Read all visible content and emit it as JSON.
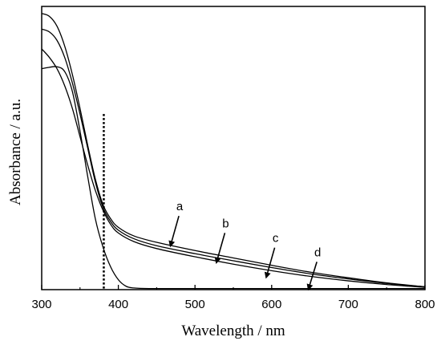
{
  "chart_data": {
    "type": "line",
    "xlabel": "Wavelength / nm",
    "ylabel": "Absorbance / a.u.",
    "xlim": [
      300,
      800
    ],
    "x_ticks": [
      300,
      400,
      500,
      600,
      700,
      800
    ],
    "y_tick_labels": false,
    "ylim": [
      0,
      1
    ],
    "grid": false,
    "series": [
      {
        "x": [
          300,
          310,
          320,
          330,
          340,
          350,
          360,
          370,
          380,
          390,
          400,
          420,
          450,
          500,
          550,
          600,
          650,
          700,
          750,
          800
        ],
        "y": [
          0.975,
          0.965,
          0.93,
          0.86,
          0.76,
          0.64,
          0.51,
          0.39,
          0.3,
          0.25,
          0.22,
          0.19,
          0.167,
          0.138,
          0.112,
          0.086,
          0.062,
          0.042,
          0.024,
          0.01
        ]
      },
      {
        "x": [
          300,
          310,
          320,
          330,
          340,
          350,
          360,
          370,
          380,
          390,
          400,
          420,
          450,
          500,
          550,
          600,
          650,
          700,
          750,
          800
        ],
        "y": [
          0.92,
          0.91,
          0.88,
          0.82,
          0.73,
          0.62,
          0.5,
          0.38,
          0.29,
          0.24,
          0.21,
          0.18,
          0.155,
          0.127,
          0.102,
          0.078,
          0.056,
          0.038,
          0.022,
          0.01
        ]
      },
      {
        "x": [
          300,
          310,
          320,
          330,
          340,
          350,
          360,
          370,
          380,
          390,
          400,
          420,
          450,
          500,
          550,
          600,
          650,
          700,
          750,
          800
        ],
        "y": [
          0.85,
          0.82,
          0.78,
          0.72,
          0.64,
          0.54,
          0.44,
          0.35,
          0.28,
          0.23,
          0.2,
          0.17,
          0.145,
          0.116,
          0.09,
          0.067,
          0.047,
          0.031,
          0.018,
          0.008
        ]
      },
      {
        "x": [
          300,
          310,
          320,
          330,
          340,
          350,
          360,
          370,
          380,
          390,
          400,
          410,
          420,
          440,
          500,
          600,
          700,
          800
        ],
        "y": [
          0.78,
          0.785,
          0.787,
          0.77,
          0.7,
          0.56,
          0.4,
          0.25,
          0.15,
          0.08,
          0.035,
          0.012,
          0.006,
          0.004,
          0.004,
          0.004,
          0.004,
          0.004
        ]
      }
    ],
    "annotations": [
      {
        "label": "a",
        "text_x": 480,
        "text_y": 0.28,
        "arrow_x": 468,
        "arrow_y": 0.155
      },
      {
        "label": "b",
        "text_x": 540,
        "text_y": 0.22,
        "arrow_x": 528,
        "arrow_y": 0.096
      },
      {
        "label": "c",
        "text_x": 605,
        "text_y": 0.168,
        "arrow_x": 593,
        "arrow_y": 0.044
      },
      {
        "label": "d",
        "text_x": 660,
        "text_y": 0.118,
        "arrow_x": 648,
        "arrow_y": 0.002
      }
    ],
    "reference_line": {
      "x": 381,
      "style": "dotted",
      "y_top": 0.62
    }
  }
}
